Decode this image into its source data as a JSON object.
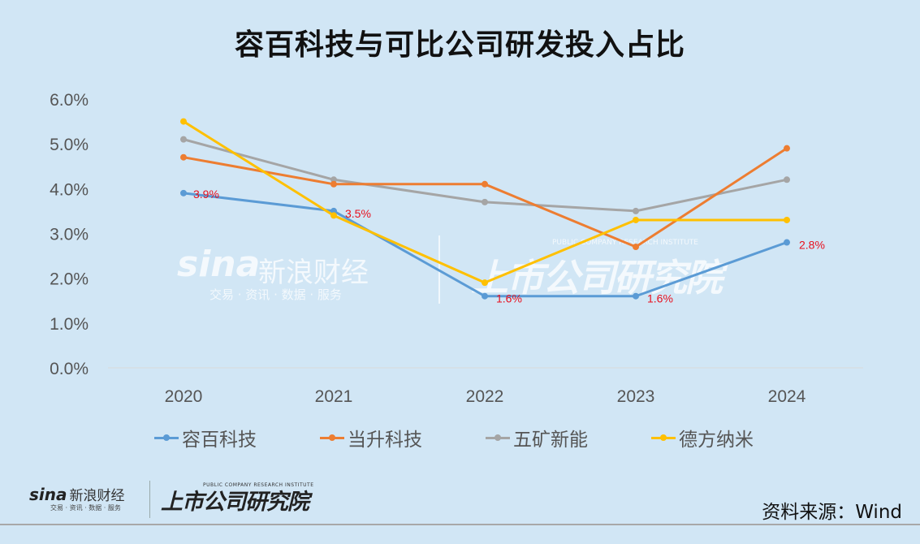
{
  "title": "容百科技与可比公司研发投入占比",
  "chart_data": {
    "type": "line",
    "title": "容百科技与可比公司研发投入占比",
    "xlabel": "",
    "ylabel": "",
    "categories": [
      "2020",
      "2021",
      "2022",
      "2023",
      "2024"
    ],
    "ylim": [
      0,
      6
    ],
    "yticks": [
      "0.0%",
      "1.0%",
      "2.0%",
      "3.0%",
      "4.0%",
      "5.0%",
      "6.0%"
    ],
    "legend_position": "bottom",
    "grid": false,
    "series": [
      {
        "name": "容百科技",
        "color": "#5b9bd5",
        "values": [
          3.9,
          3.5,
          1.6,
          1.6,
          2.8
        ],
        "data_labels": [
          "3.9%",
          "3.5%",
          "1.6%",
          "1.6%",
          "2.8%"
        ]
      },
      {
        "name": "当升科技",
        "color": "#ed7d31",
        "values": [
          4.7,
          4.1,
          4.1,
          2.7,
          4.9
        ]
      },
      {
        "name": "五矿新能",
        "color": "#a5a5a5",
        "values": [
          5.1,
          4.2,
          3.7,
          3.5,
          4.2
        ]
      },
      {
        "name": "德方纳米",
        "color": "#ffc000",
        "values": [
          5.5,
          3.4,
          1.9,
          3.3,
          3.3
        ]
      }
    ]
  },
  "legend": [
    "容百科技",
    "当升科技",
    "五矿新能",
    "德方纳米"
  ],
  "watermark": {
    "sina": "sina",
    "sina_cn": "新浪财经",
    "sina_sub": "交易 · 资讯 · 数据 · 服务",
    "institute": "上市公司研究院",
    "institute_en": "PUBLIC COMPANY RESEARCH INSTITUTE"
  },
  "footer": {
    "sina": "sina",
    "sina_cn": "新浪财经",
    "sina_sub": "交易 · 资讯 · 数据 · 服务",
    "institute": "上市公司研究院",
    "institute_en": "PUBLIC COMPANY RESEARCH INSTITUTE",
    "source": "资料来源：Wind"
  }
}
